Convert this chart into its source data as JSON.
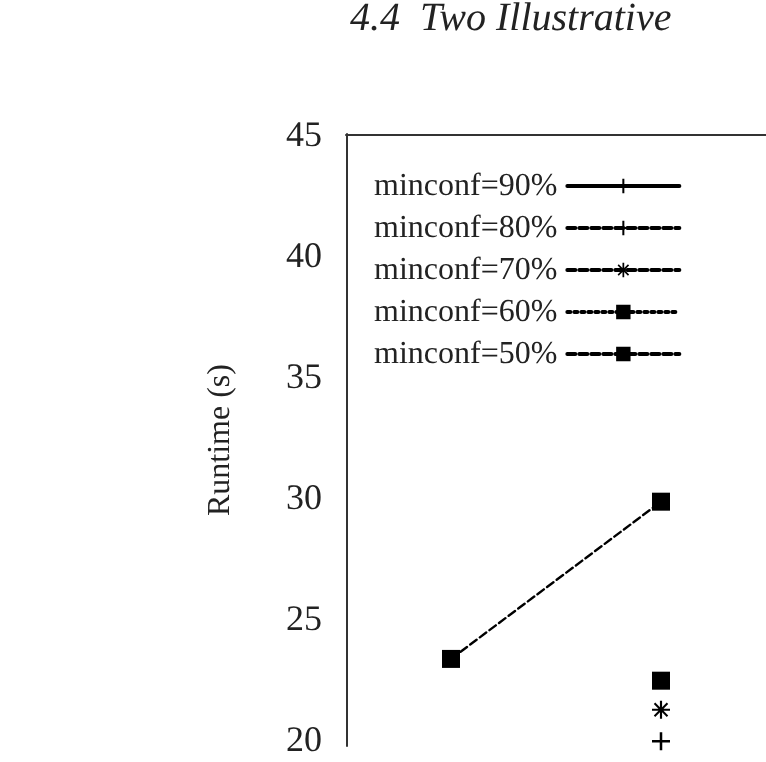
{
  "chart_data": {
    "type": "line",
    "title": "4.4  Two Illustrative",
    "ylabel": "Runtime (s)",
    "categories": [
      null,
      null
    ],
    "ylim": [
      19.7,
      45
    ],
    "yticks": [
      20,
      25,
      30,
      35,
      40,
      45
    ],
    "grid": false,
    "legend": "top left",
    "series": [
      {
        "name": "minconf=90%",
        "color": "#000000",
        "values": [
          null,
          null
        ],
        "marker": "cross",
        "line_style": "solid"
      },
      {
        "name": "minconf=80%",
        "color": "#000000",
        "values": [
          null,
          19.9
        ],
        "marker": "cross",
        "line_style": "dashed"
      },
      {
        "name": "minconf=70%",
        "color": "#000000",
        "values": [
          null,
          21.2
        ],
        "marker": "star",
        "line_style": "dashed"
      },
      {
        "name": "minconf=60%",
        "color": "#000000",
        "values": [
          null,
          22.4
        ],
        "marker": "square",
        "line_style": "dotted"
      },
      {
        "name": "minconf=50%",
        "color": "#000000",
        "values": [
          23.3,
          29.8
        ],
        "marker": "square",
        "line_style": "dashed"
      }
    ]
  }
}
